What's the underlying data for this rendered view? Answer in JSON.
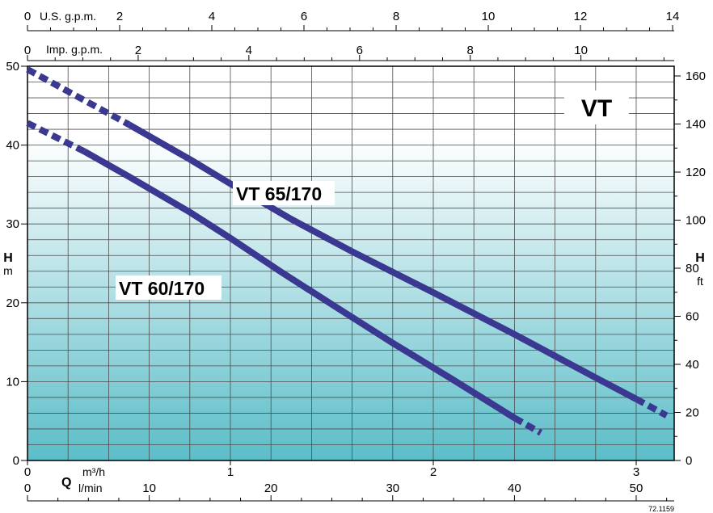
{
  "chart_data": {
    "type": "line",
    "title": "VT",
    "series": [
      {
        "name": "VT 65/170",
        "x_m3h": [
          0,
          0.5,
          0.8,
          1.0,
          1.3,
          1.6,
          2.0,
          2.4,
          2.8,
          3.0,
          3.15
        ],
        "y_m": [
          49.6,
          42.6,
          38.2,
          35.1,
          30.6,
          26.5,
          21.3,
          16.0,
          10.5,
          7.8,
          5.7
        ],
        "solid_from_x": 0.5,
        "solid_to_x": 3.0
      },
      {
        "name": "VT 60/170",
        "x_m3h": [
          0,
          0.28,
          0.5,
          0.8,
          1.0,
          1.25,
          1.5,
          1.8,
          2.1,
          2.4,
          2.53
        ],
        "y_m": [
          42.8,
          39.2,
          36.0,
          31.5,
          28.2,
          23.9,
          19.8,
          14.9,
          10.2,
          5.4,
          3.5
        ],
        "solid_from_x": 0.28,
        "solid_to_x": 2.4
      }
    ],
    "axes": {
      "y_left": {
        "label": "H",
        "unit": "m",
        "ticks": [
          "0",
          "10",
          "20",
          "30",
          "40",
          "50"
        ],
        "range": [
          0,
          50
        ]
      },
      "y_right": {
        "label": "H",
        "unit": "ft",
        "ticks": [
          "0",
          "20",
          "40",
          "60",
          "80",
          "100",
          "120",
          "140",
          "160"
        ]
      },
      "x_m3h": {
        "label": "Q",
        "unit": "m³/h",
        "ticks": [
          "0",
          "1",
          "2",
          "3"
        ],
        "range": [
          0,
          3.2
        ]
      },
      "x_lmin": {
        "unit": "l/min",
        "ticks": [
          "0",
          "10",
          "20",
          "30",
          "40",
          "50"
        ]
      },
      "x_usgpm": {
        "label": "U.S. g.p.m.",
        "ticks": [
          "0",
          "2",
          "4",
          "6",
          "8",
          "10",
          "12",
          "14"
        ]
      },
      "x_impgpm": {
        "label": "Imp. g.p.m.",
        "ticks": [
          "0",
          "2",
          "4",
          "6",
          "8",
          "10"
        ]
      }
    },
    "grid": true,
    "reference_code": "72.1159",
    "colors": {
      "curve": "#3a3890",
      "gradient_top": "#ffffff",
      "gradient_bottom": "#5bbdc8",
      "grid": "#4d4d4d"
    }
  }
}
